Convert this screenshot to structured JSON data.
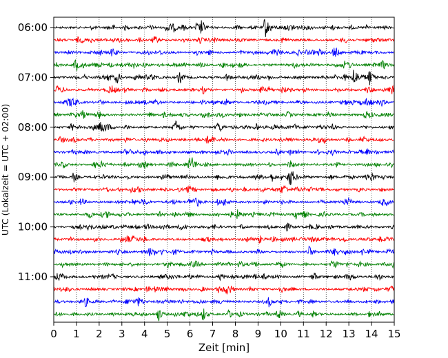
{
  "chart_data": {
    "type": "line",
    "title": "",
    "xlabel": "Zeit  [min]",
    "ylabel": "UTC (Lokalzeit = UTC + 02:00)",
    "xlim": [
      0,
      15
    ],
    "x_ticks": [
      "0",
      "1",
      "2",
      "3",
      "4",
      "5",
      "6",
      "7",
      "8",
      "9",
      "10",
      "11",
      "12",
      "13",
      "14",
      "15"
    ],
    "y_ticks": [
      "06:00",
      "07:00",
      "08:00",
      "09:00",
      "10:00",
      "11:00"
    ],
    "grid": "vertical dotted",
    "colors": [
      "#000000",
      "#ff0000",
      "#0000ff",
      "#008000"
    ],
    "traces": [
      {
        "start": "06:00",
        "events": [
          [
            5.0,
            1.0
          ],
          [
            5.3,
            0.4
          ],
          [
            6.5,
            0.5
          ],
          [
            9.3,
            1.3
          ]
        ]
      },
      {
        "start": "06:15",
        "events": []
      },
      {
        "start": "06:30",
        "events": [
          [
            11.7,
            0.35
          ]
        ]
      },
      {
        "start": "06:45",
        "events": [
          [
            0.95,
            1.0
          ],
          [
            12.8,
            0.4
          ]
        ]
      },
      {
        "start": "07:00",
        "events": [
          [
            5.5,
            0.6
          ],
          [
            13.2,
            1.2
          ],
          [
            13.9,
            1.0
          ]
        ]
      },
      {
        "start": "07:15",
        "events": [
          [
            2.4,
            0.4
          ],
          [
            8.3,
            0.4
          ],
          [
            14.9,
            0.3
          ]
        ]
      },
      {
        "start": "07:30",
        "events": [
          [
            13.8,
            0.4
          ]
        ]
      },
      {
        "start": "07:45",
        "events": [
          [
            13.7,
            0.3
          ]
        ]
      },
      {
        "start": "08:00",
        "events": [
          [
            2.1,
            0.5
          ],
          [
            10.6,
            0.35
          ],
          [
            12.3,
            0.3
          ]
        ]
      },
      {
        "start": "08:15",
        "events": []
      },
      {
        "start": "08:30",
        "events": []
      },
      {
        "start": "08:45",
        "events": [
          [
            4.0,
            0.3
          ]
        ]
      },
      {
        "start": "09:00",
        "events": [
          [
            10.4,
            1.1
          ],
          [
            14.0,
            0.5
          ]
        ]
      },
      {
        "start": "09:15",
        "events": [
          [
            5.9,
            0.35
          ]
        ]
      },
      {
        "start": "09:30",
        "events": [
          [
            6.1,
            0.5
          ]
        ]
      },
      {
        "start": "09:45",
        "events": [
          [
            8.1,
            0.45
          ],
          [
            10.7,
            0.35
          ]
        ]
      },
      {
        "start": "10:00",
        "events": [
          [
            1.5,
            0.3
          ]
        ]
      },
      {
        "start": "10:15",
        "events": [
          [
            3.2,
            0.5
          ],
          [
            3.5,
            0.4
          ],
          [
            4.0,
            0.3
          ]
        ]
      },
      {
        "start": "10:30",
        "events": []
      },
      {
        "start": "10:45",
        "events": []
      },
      {
        "start": "11:00",
        "events": []
      },
      {
        "start": "11:15",
        "events": [
          [
            7.6,
            0.35
          ],
          [
            14.9,
            0.3
          ]
        ]
      },
      {
        "start": "11:30",
        "events": [
          [
            1.4,
            0.4
          ],
          [
            11.3,
            0.3
          ],
          [
            14.9,
            0.3
          ]
        ]
      },
      {
        "start": "11:45",
        "events": [
          [
            4.6,
            0.9
          ]
        ]
      }
    ]
  }
}
